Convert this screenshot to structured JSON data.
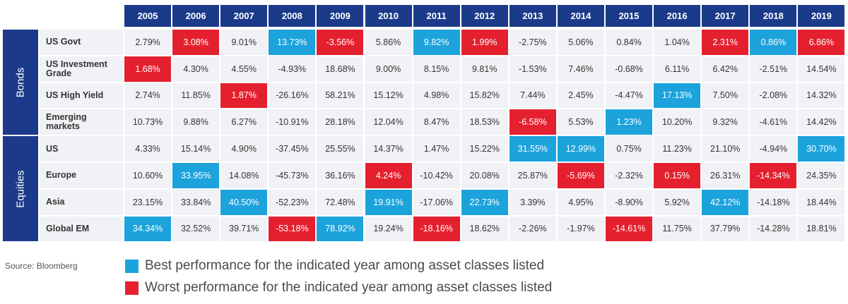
{
  "chart_data": {
    "type": "table",
    "title": "",
    "years": [
      "2005",
      "2006",
      "2007",
      "2008",
      "2009",
      "2010",
      "2011",
      "2012",
      "2013",
      "2014",
      "2015",
      "2016",
      "2017",
      "2018",
      "2019"
    ],
    "groups": [
      {
        "name": "Bonds",
        "rows": [
          {
            "label": "US Govt",
            "values": [
              "2.79%",
              "3.08%",
              "9.01%",
              "13.73%",
              "-3.56%",
              "5.86%",
              "9.82%",
              "1.99%",
              "-2.75%",
              "5.06%",
              "0.84%",
              "1.04%",
              "2.31%",
              "0.86%",
              "6.86%"
            ],
            "marks": [
              "",
              "worst",
              "",
              "best",
              "worst",
              "",
              "best",
              "worst",
              "",
              "",
              "",
              "",
              "worst",
              "best",
              "worst"
            ]
          },
          {
            "label": "US Investment Grade",
            "values": [
              "1.68%",
              "4.30%",
              "4.55%",
              "-4.93%",
              "18.68%",
              "9.00%",
              "8.15%",
              "9.81%",
              "-1.53%",
              "7.46%",
              "-0.68%",
              "6.11%",
              "6.42%",
              "-2.51%",
              "14.54%"
            ],
            "marks": [
              "worst",
              "",
              "",
              "",
              "",
              "",
              "",
              "",
              "",
              "",
              "",
              "",
              "",
              "",
              ""
            ]
          },
          {
            "label": "US High Yield",
            "values": [
              "2.74%",
              "11.85%",
              "1.87%",
              "-26.16%",
              "58.21%",
              "15.12%",
              "4.98%",
              "15.82%",
              "7.44%",
              "2.45%",
              "-4.47%",
              "17.13%",
              "7.50%",
              "-2.08%",
              "14.32%"
            ],
            "marks": [
              "",
              "",
              "worst",
              "",
              "",
              "",
              "",
              "",
              "",
              "",
              "",
              "best",
              "",
              "",
              ""
            ]
          },
          {
            "label": "Emerging markets",
            "values": [
              "10.73%",
              "9.88%",
              "6.27%",
              "-10.91%",
              "28.18%",
              "12.04%",
              "8.47%",
              "18.53%",
              "-6.58%",
              "5.53%",
              "1.23%",
              "10.20%",
              "9.32%",
              "-4.61%",
              "14.42%"
            ],
            "marks": [
              "",
              "",
              "",
              "",
              "",
              "",
              "",
              "",
              "worst",
              "",
              "best",
              "",
              "",
              "",
              ""
            ]
          }
        ]
      },
      {
        "name": "Equities",
        "rows": [
          {
            "label": "US",
            "values": [
              "4.33%",
              "15.14%",
              "4.90%",
              "-37.45%",
              "25.55%",
              "14.37%",
              "1.47%",
              "15.22%",
              "31.55%",
              "12.99%",
              "0.75%",
              "11.23%",
              "21.10%",
              "-4.94%",
              "30.70%"
            ],
            "marks": [
              "",
              "",
              "",
              "",
              "",
              "",
              "",
              "",
              "best",
              "best",
              "",
              "",
              "",
              "",
              "best"
            ]
          },
          {
            "label": "Europe",
            "values": [
              "10.60%",
              "33.95%",
              "14.08%",
              "-45.73%",
              "36.16%",
              "4.24%",
              "-10.42%",
              "20.08%",
              "25.87%",
              "-5.69%",
              "-2.32%",
              "0.15%",
              "26.31%",
              "-14.34%",
              "24.35%"
            ],
            "marks": [
              "",
              "best",
              "",
              "",
              "",
              "worst",
              "",
              "",
              "",
              "worst",
              "",
              "worst",
              "",
              "worst",
              ""
            ]
          },
          {
            "label": "Asia",
            "values": [
              "23.15%",
              "33.84%",
              "40.50%",
              "-52.23%",
              "72.48%",
              "19.91%",
              "-17.06%",
              "22.73%",
              "3.39%",
              "4.95%",
              "-8.90%",
              "5.92%",
              "42.12%",
              "-14.18%",
              "18.44%"
            ],
            "marks": [
              "",
              "",
              "best",
              "",
              "",
              "best",
              "",
              "best",
              "",
              "",
              "",
              "",
              "best",
              "",
              ""
            ]
          },
          {
            "label": "Global EM",
            "values": [
              "34.34%",
              "32.52%",
              "39.71%",
              "-53.18%",
              "78.92%",
              "19.24%",
              "-18.16%",
              "18.62%",
              "-2.26%",
              "-1.97%",
              "-14.61%",
              "11.75%",
              "37.79%",
              "-14.28%",
              "18.81%"
            ],
            "marks": [
              "best",
              "",
              "",
              "worst",
              "best",
              "",
              "worst",
              "",
              "",
              "",
              "worst",
              "",
              "",
              "",
              ""
            ]
          }
        ]
      }
    ],
    "legend": [
      {
        "key": "best",
        "label": "Best performance for the indicated year among asset classes listed",
        "color": "#1ca3dc"
      },
      {
        "key": "worst",
        "label": "Worst performance for the indicated year among asset classes listed",
        "color": "#e5202e"
      }
    ],
    "source": "Source: Bloomberg"
  }
}
